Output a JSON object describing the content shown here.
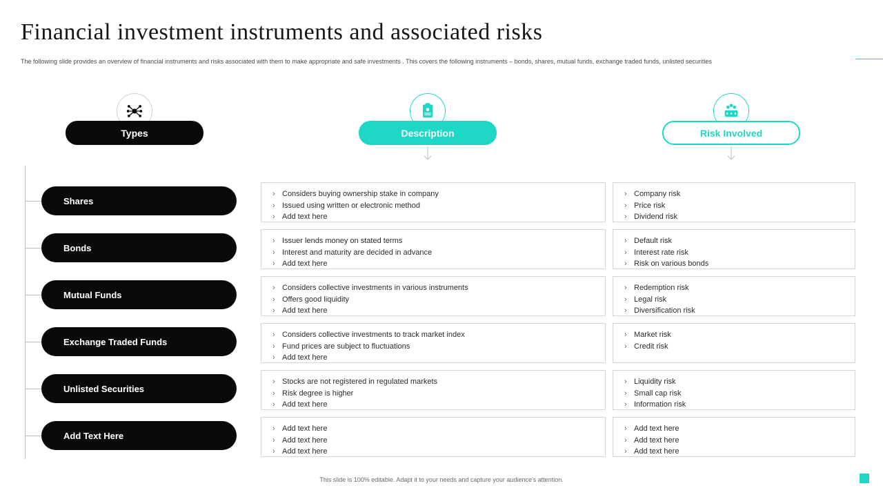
{
  "colors": {
    "accent": "#1ed8c5",
    "black": "#0a0a0a",
    "text": "#161616",
    "border": "#d5d5d5"
  },
  "title": "Financial investment instruments and associated risks",
  "subtitle": "The following slide provides an overview of financial instruments and risks associated with them to make  appropriate and safe investments . This covers the following instruments – bonds, shares, mutual  funds, exchange traded funds, unlisted securities",
  "footer": "This slide is 100% editable. Adapt it to your needs and capture your audience's attention.",
  "headers": {
    "types": "Types",
    "description": "Description",
    "risk": "Risk Involved"
  },
  "rows": [
    {
      "type": "Shares",
      "desc": [
        "Considers buying ownership stake in company",
        "Issued using written or electronic method",
        "Add text here"
      ],
      "risk": [
        "Company risk",
        "Price risk",
        "Dividend  risk"
      ]
    },
    {
      "type": "Bonds",
      "desc": [
        "Issuer lends money on stated terms",
        "Interest and maturity are decided in advance",
        "Add text here"
      ],
      "risk": [
        "Default risk",
        "Interest rate risk",
        "Risk on various bonds"
      ]
    },
    {
      "type": "Mutual Funds",
      "desc": [
        "Considers collective investments in various  instruments",
        "Offers good liquidity",
        "Add text here"
      ],
      "risk": [
        "Redemption risk",
        "Legal risk",
        "Diversification  risk"
      ]
    },
    {
      "type": "Exchange Traded Funds",
      "desc": [
        "Considers collective investments to track market index",
        "Fund prices are subject to fluctuations",
        "Add text here"
      ],
      "risk": [
        "Market risk",
        "Credit risk"
      ]
    },
    {
      "type": "Unlisted Securities",
      "desc": [
        "Stocks are not registered in regulated  markets",
        "Risk degree is higher",
        "Add text here"
      ],
      "risk": [
        "Liquidity risk",
        "Small cap risk",
        "Information  risk"
      ]
    },
    {
      "type": "Add  Text Here",
      "desc": [
        "Add text here",
        "Add text here",
        "Add text here"
      ],
      "risk": [
        "Add text here",
        "Add text here",
        "Add text here"
      ]
    }
  ]
}
